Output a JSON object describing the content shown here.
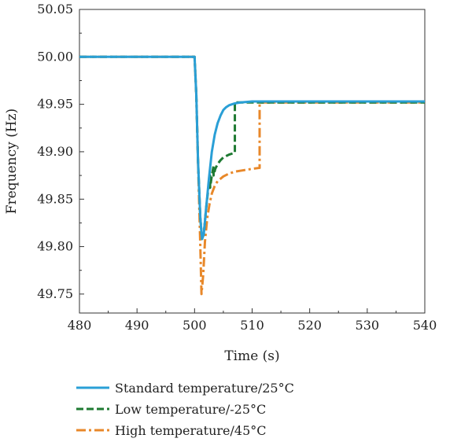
{
  "chart_data": {
    "type": "line",
    "title": "",
    "xlabel": "Time (s)",
    "ylabel": "Frequency (Hz)",
    "xlim": [
      480,
      540
    ],
    "ylim": [
      49.73,
      50.05
    ],
    "xticks": [
      480,
      490,
      500,
      510,
      520,
      530,
      540
    ],
    "xtick_labels": [
      "480",
      "490",
      "500",
      "510",
      "520",
      "530",
      "540"
    ],
    "yticks": [
      49.75,
      49.8,
      49.85,
      49.9,
      49.95,
      50.0,
      50.05
    ],
    "ytick_labels": [
      "49.75",
      "49.80",
      "49.85",
      "49.90",
      "49.95",
      "50.00",
      "50.05"
    ],
    "grid": false,
    "legend_position": "bottom",
    "series": [
      {
        "name": "Standard temperature/25°C",
        "color": "#2a9fd6",
        "dash": "solid",
        "x": [
          480,
          500,
          500.3,
          500.6,
          501.0,
          501.3,
          501.6,
          502.0,
          502.5,
          503.0,
          503.5,
          504.0,
          504.5,
          505.0,
          505.5,
          506.0,
          507.0,
          508.0,
          510.0,
          540
        ],
        "y": [
          50.0,
          50.0,
          49.96,
          49.89,
          49.83,
          49.808,
          49.813,
          49.84,
          49.872,
          49.9,
          49.918,
          49.93,
          49.938,
          49.944,
          49.947,
          49.949,
          49.951,
          49.952,
          49.953,
          49.953
        ]
      },
      {
        "name": "Low temperature/-25°C",
        "color": "#1e7a32",
        "dash": "dashed",
        "x": [
          480,
          500,
          500.3,
          500.6,
          501.0,
          501.3,
          501.6,
          502.0,
          502.4,
          502.7,
          502.7,
          503.0,
          503.3,
          503.3,
          503.6,
          504.0,
          504.5,
          505.0,
          506.0,
          507.0,
          507.0,
          540
        ],
        "y": [
          50.0,
          50.0,
          49.96,
          49.89,
          49.83,
          49.808,
          49.813,
          49.84,
          49.862,
          49.875,
          49.862,
          49.875,
          49.885,
          49.875,
          49.882,
          49.887,
          49.891,
          49.894,
          49.897,
          49.899,
          49.952,
          49.952
        ]
      },
      {
        "name": "High temperature/45°C",
        "color": "#e8882a",
        "dash": "dashdot",
        "x": [
          480,
          500,
          500.3,
          500.6,
          501.0,
          501.2,
          501.5,
          501.8,
          502.2,
          502.6,
          503.0,
          503.5,
          504.0,
          505.0,
          506.0,
          507.0,
          508.0,
          509.0,
          510.0,
          511.3,
          511.3,
          540
        ],
        "y": [
          50.0,
          50.0,
          49.96,
          49.89,
          49.8,
          49.75,
          49.77,
          49.805,
          49.83,
          49.845,
          49.856,
          49.864,
          49.869,
          49.874,
          49.877,
          49.879,
          49.88,
          49.881,
          49.882,
          49.883,
          49.952,
          49.952
        ]
      }
    ]
  }
}
